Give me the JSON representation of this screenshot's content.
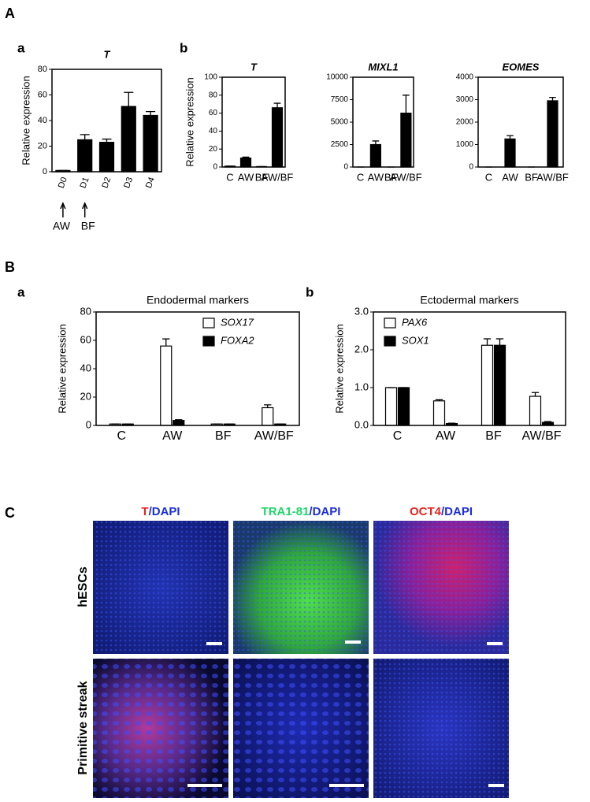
{
  "panel_labels": [
    "A",
    "a",
    "b",
    "B",
    "a",
    "b",
    "C"
  ],
  "chart_data": [
    {
      "type": "bar",
      "title": "T",
      "ylabel": "Relative expression",
      "categories": [
        "D0",
        "D1",
        "D2",
        "D3",
        "D4"
      ],
      "values": [
        1,
        25,
        23,
        51,
        44
      ],
      "errors": [
        0,
        4,
        2.5,
        11,
        3
      ],
      "color": "#000000",
      "ylim": [
        0,
        80
      ],
      "yticks": [
        0,
        20,
        40,
        60,
        80
      ],
      "annotations": [
        "AW",
        "BF"
      ]
    },
    {
      "type": "bar",
      "title": "T",
      "ylabel": "Relative expression",
      "categories": [
        "C",
        "AW",
        "BF",
        "AW/BF"
      ],
      "values": [
        1,
        10,
        0.5,
        66
      ],
      "errors": [
        0,
        1,
        0,
        5
      ],
      "color": "#000000",
      "ylim": [
        0,
        100
      ],
      "yticks": [
        0,
        20,
        40,
        60,
        80,
        100
      ]
    },
    {
      "type": "bar",
      "title": "MIXL1",
      "categories": [
        "C",
        "AW",
        "BF",
        "AW/BF"
      ],
      "values": [
        0,
        2500,
        0,
        6000
      ],
      "errors": [
        0,
        400,
        0,
        2000
      ],
      "color": "#000000",
      "ylim": [
        0,
        10000
      ],
      "yticks": [
        0,
        2500,
        5000,
        7500,
        10000
      ]
    },
    {
      "type": "bar",
      "title": "EOMES",
      "categories": [
        "C",
        "AW",
        "BF",
        "AW/BF"
      ],
      "values": [
        0,
        1250,
        0,
        2950
      ],
      "errors": [
        0,
        150,
        0,
        150
      ],
      "color": "#000000",
      "ylim": [
        0,
        4000
      ],
      "yticks": [
        0,
        1000,
        2000,
        3000,
        4000
      ]
    },
    {
      "type": "bar",
      "title": "Endodermal markers",
      "ylabel": "Relative expression",
      "categories": [
        "C",
        "AW",
        "BF",
        "AW/BF"
      ],
      "series": [
        {
          "name": "SOX17",
          "color": "#ffffff",
          "values": [
            1,
            56,
            1,
            12.5
          ],
          "errors": [
            0,
            5,
            0,
            2
          ]
        },
        {
          "name": "FOXA2",
          "color": "#000000",
          "values": [
            1,
            3.5,
            1,
            1
          ],
          "errors": [
            0,
            0.5,
            0,
            0
          ]
        }
      ],
      "ylim": [
        0,
        80
      ],
      "yticks": [
        0,
        20,
        40,
        60,
        80
      ],
      "legend": "top-right"
    },
    {
      "type": "bar",
      "title": "Ectodermal markers",
      "ylabel": "Relative expression",
      "categories": [
        "C",
        "AW",
        "BF",
        "AW/BF"
      ],
      "series": [
        {
          "name": "PAX6",
          "color": "#ffffff",
          "values": [
            1,
            0.65,
            2.12,
            0.77
          ],
          "errors": [
            0,
            0.03,
            0.17,
            0.1
          ]
        },
        {
          "name": "SOX1",
          "color": "#000000",
          "values": [
            1,
            0.05,
            2.12,
            0.08
          ],
          "errors": [
            0,
            0.01,
            0.17,
            0.02
          ]
        }
      ],
      "ylim": [
        0,
        3
      ],
      "yticks": [
        {
          "value": 0,
          "label": "0.0"
        },
        {
          "value": 1,
          "label": "1.0"
        },
        {
          "value": 2,
          "label": "2.0"
        },
        {
          "value": 3,
          "label": "3.0"
        }
      ],
      "legend": "top-left"
    }
  ],
  "micrographs": {
    "columns": [
      [
        {
          "text": "T",
          "color": "#e8231f"
        },
        {
          "text": "/DAPI",
          "color": "#1c2fd6"
        }
      ],
      [
        {
          "text": "TRA1-81",
          "color": "#1fd66a"
        },
        {
          "text": "/DAPI",
          "color": "#1c2fd6"
        }
      ],
      [
        {
          "text": "OCT4",
          "color": "#e8231f"
        },
        {
          "text": "/DAPI",
          "color": "#1c2fd6"
        }
      ]
    ],
    "rows": [
      "hESCs",
      "Primitive streak"
    ]
  }
}
